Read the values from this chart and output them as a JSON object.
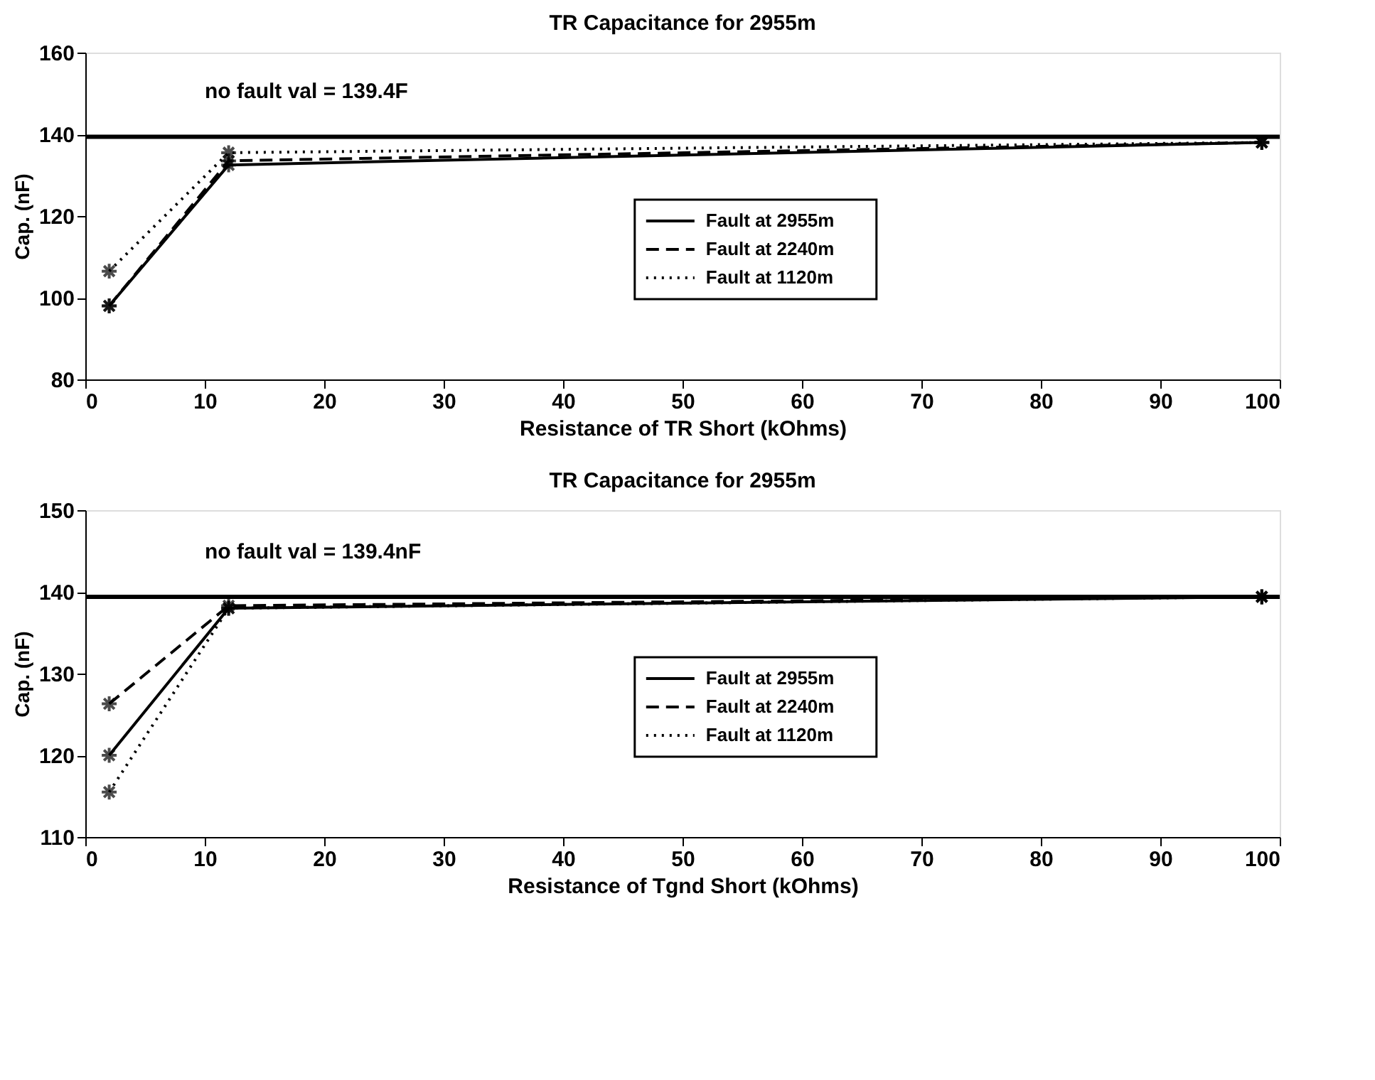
{
  "chart_data": [
    {
      "type": "line",
      "title": "TR Capacitance for 2955m",
      "xlabel": "Resistance of TR Short (kOhms)",
      "ylabel": "Cap. (nF)",
      "x": [
        2,
        12,
        98.5
      ],
      "series": [
        {
          "name": "Fault at 2955m",
          "color": "#000000",
          "line_style": "solid",
          "values": [
            98,
            132.5,
            138
          ]
        },
        {
          "name": "Fault at 2240m",
          "color": "#000000",
          "line_style": "dashed",
          "values": [
            98,
            133.5,
            138
          ]
        },
        {
          "name": "Fault at 1120m",
          "color": "#000000",
          "line_style": "dotted",
          "values": [
            106.5,
            135.5,
            138
          ]
        }
      ],
      "ref_lines": [
        {
          "axis": "y",
          "value": 139.4,
          "label": "no fault val = 139.4F",
          "color": "#000000"
        }
      ],
      "xlim": [
        0,
        100
      ],
      "xticks": [
        0,
        10,
        20,
        30,
        40,
        50,
        60,
        70,
        80,
        90,
        100
      ],
      "ylim": [
        80,
        160
      ],
      "yticks": [
        80,
        100,
        120,
        140,
        160
      ],
      "marker": "cross",
      "grid": false,
      "legend": "right"
    },
    {
      "type": "line",
      "title": "TR Capacitance for 2955m",
      "xlabel": "Resistance of Tgnd Short (kOhms)",
      "ylabel": "Cap. (nF)",
      "x": [
        2,
        12,
        98.5
      ],
      "series": [
        {
          "name": "Fault at 2955m",
          "color": "#000000",
          "line_style": "solid",
          "values": [
            120,
            138,
            139.4
          ]
        },
        {
          "name": "Fault at 2240m",
          "color": "#000000",
          "line_style": "dashed",
          "values": [
            126.3,
            138.3,
            139.4
          ]
        },
        {
          "name": "Fault at 1120m",
          "color": "#000000",
          "line_style": "dotted",
          "values": [
            115.5,
            138,
            139.4
          ]
        }
      ],
      "ref_lines": [
        {
          "axis": "y",
          "value": 139.4,
          "label": "no fault val = 139.4nF",
          "color": "#000000"
        }
      ],
      "xlim": [
        0,
        100
      ],
      "xticks": [
        0,
        10,
        20,
        30,
        40,
        50,
        60,
        70,
        80,
        90,
        100
      ],
      "ylim": [
        110,
        150
      ],
      "yticks": [
        110,
        120,
        130,
        140,
        150
      ],
      "marker": "cross",
      "grid": false,
      "legend": "right"
    }
  ]
}
